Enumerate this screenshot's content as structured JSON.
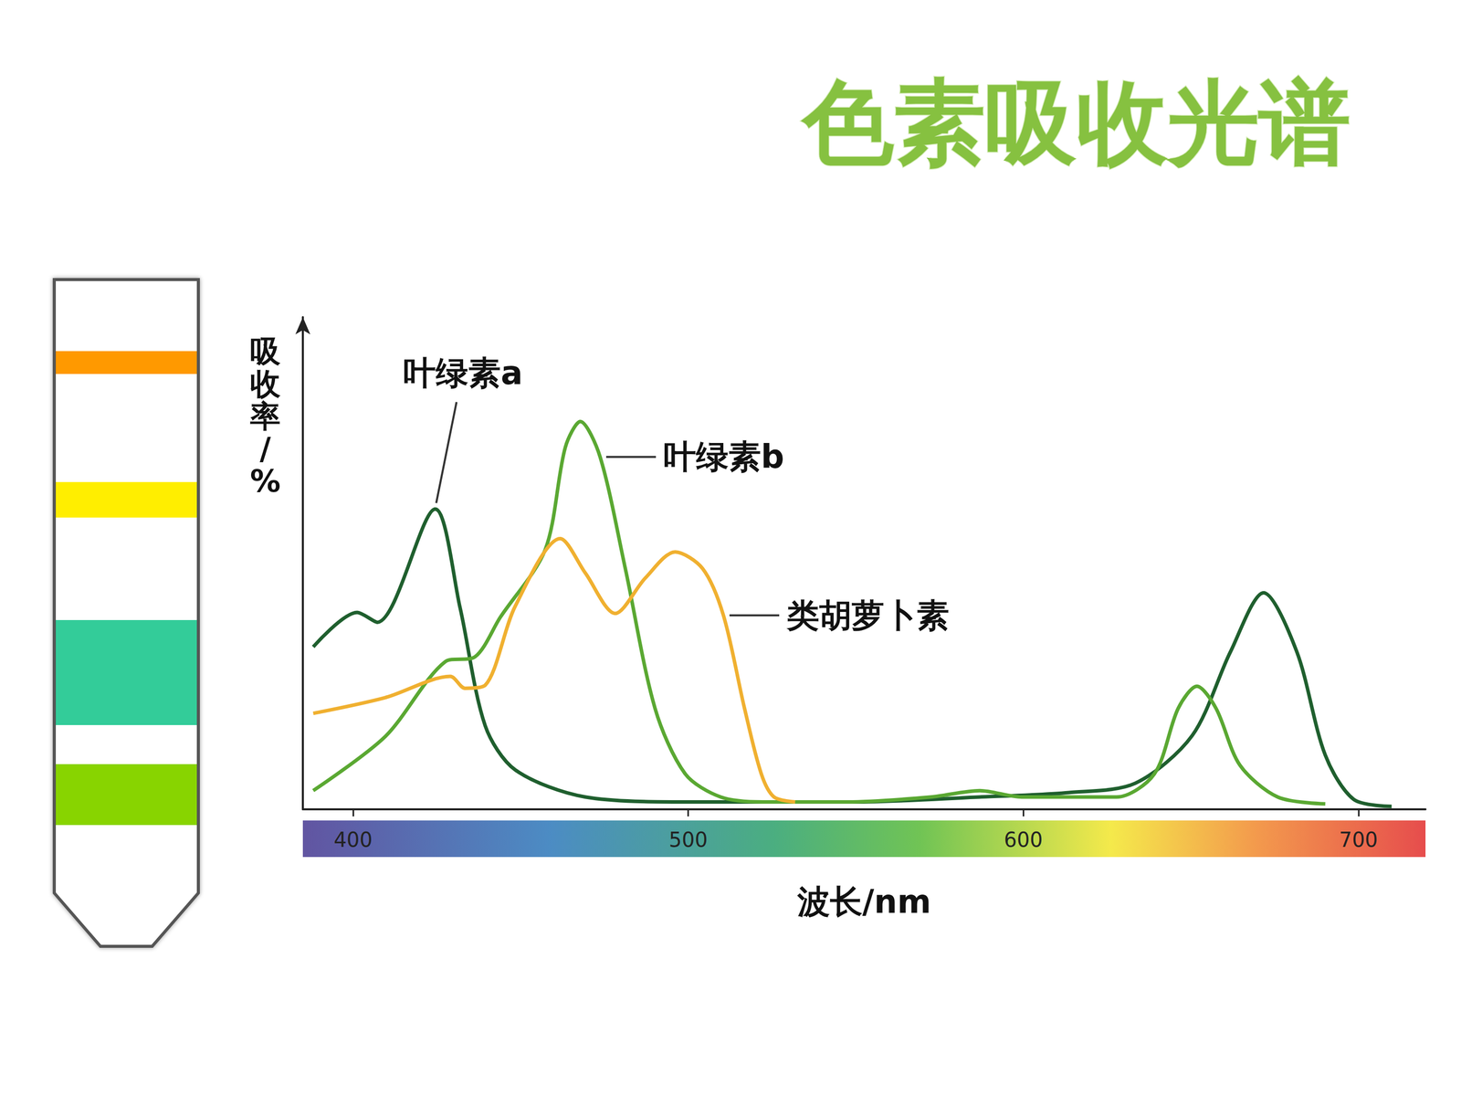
{
  "title": "色素吸收光谱",
  "strip": {
    "bands": [
      "#ff9900",
      "#ffee00",
      "#33cc99",
      "#88d400"
    ]
  },
  "chart_data": {
    "type": "line",
    "x_label": "波长/nm",
    "y_label": "吸收率/%",
    "xlim": [
      385,
      720
    ],
    "xticks": [
      400,
      500,
      600,
      700
    ],
    "ylim": [
      0,
      100
    ],
    "tick_labels": "x",
    "grid": false,
    "series": [
      {
        "name": "叶绿素a",
        "color": "#1f5f2e",
        "x": [
          388.1,
          401.2,
          407.2,
          424.5,
          431.9,
          439.4,
          448.4,
          469.3,
          499.1,
          549.4,
          587.0,
          613.6,
          633.4,
          650.4,
          661.8,
          671.7,
          681.6,
          690.1,
          698.6,
          709.9
        ],
        "values": [
          33,
          40,
          38,
          61,
          41,
          17,
          8,
          2.5,
          1.5,
          1.5,
          2.5,
          3.4,
          5.3,
          15,
          32,
          44,
          32,
          11,
          2,
          0.6
        ]
      },
      {
        "name": "叶绿素b",
        "color": "#5aa832",
        "x": [
          388.1,
          409.6,
          427.5,
          436.4,
          443.9,
          457.3,
          463.3,
          467.8,
          473.7,
          481.2,
          490.1,
          499.1,
          509.7,
          522.3,
          547.4,
          572.4,
          587.0,
          599.5,
          627.8,
          639.1,
          646.2,
          651.8,
          657.5,
          664.6,
          675.9,
          690.1
        ],
        "values": [
          3.8,
          14.8,
          30,
          31,
          39,
          52.7,
          73.5,
          78.8,
          71.6,
          49,
          20.5,
          7.2,
          2.5,
          1.5,
          1.5,
          2.5,
          3.8,
          2.5,
          2.5,
          7.2,
          20.5,
          25,
          20.5,
          9,
          2.5,
          1.1
        ]
      },
      {
        "name": "类胡萝卜素",
        "color": "#f0b030",
        "x": [
          388.1,
          409.6,
          429.0,
          433.4,
          439.4,
          448.4,
          461.8,
          469.3,
          478.2,
          487.2,
          496.1,
          504.3,
          510.5,
          516.8,
          521.8,
          525.6,
          531.9
        ],
        "values": [
          19.5,
          22.7,
          27,
          24.6,
          25.2,
          41.3,
          55,
          48,
          39.8,
          47,
          52.3,
          48.9,
          39.4,
          20.5,
          7.2,
          2.5,
          1.5
        ]
      }
    ]
  }
}
